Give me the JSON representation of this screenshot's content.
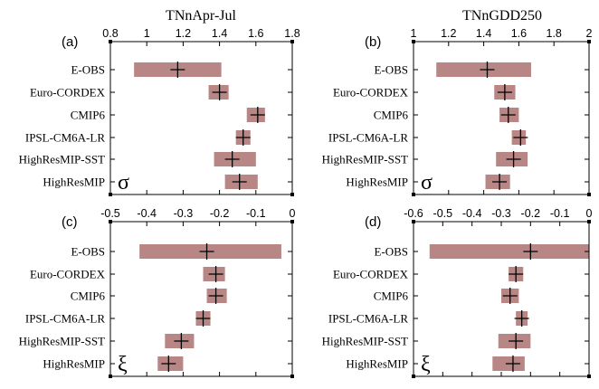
{
  "columns": [
    "TNnApr-Jul",
    "TNnGDD250"
  ],
  "chart_data": [
    {
      "type": "bar",
      "panel": "(a)",
      "param": "σ",
      "categories": [
        "E-OBS",
        "Euro-CORDEX",
        "CMIP6",
        "IPSL-CM6A-LR",
        "HighResMIP-SST",
        "HighResMIP"
      ],
      "xlim": [
        0.8,
        1.8
      ],
      "xticks": [
        "0.8",
        "1",
        "1.2",
        "1.4",
        "1.6",
        "1.8"
      ],
      "ranges": [
        [
          0.93,
          1.41
        ],
        [
          1.34,
          1.45
        ],
        [
          1.55,
          1.65
        ],
        [
          1.49,
          1.57
        ],
        [
          1.37,
          1.6
        ],
        [
          1.43,
          1.61
        ]
      ],
      "estimates": [
        1.17,
        1.4,
        1.61,
        1.53,
        1.47,
        1.51
      ]
    },
    {
      "type": "bar",
      "panel": "(b)",
      "param": "σ",
      "categories": [
        "E-OBS",
        "Euro-CORDEX",
        "CMIP6",
        "IPSL-CM6A-LR",
        "HighResMIP-SST",
        "HighResMIP"
      ],
      "xlim": [
        1,
        2
      ],
      "xticks": [
        "1",
        "1.2",
        "1.4",
        "1.6",
        "1.8",
        "2"
      ],
      "ranges": [
        [
          1.13,
          1.67
        ],
        [
          1.46,
          1.58
        ],
        [
          1.49,
          1.6
        ],
        [
          1.56,
          1.64
        ],
        [
          1.47,
          1.65
        ],
        [
          1.41,
          1.55
        ]
      ],
      "estimates": [
        1.42,
        1.52,
        1.54,
        1.61,
        1.57,
        1.49
      ]
    },
    {
      "type": "bar",
      "panel": "(c)",
      "param": "ξ",
      "categories": [
        "E-OBS",
        "Euro-CORDEX",
        "CMIP6",
        "IPSL-CM6A-LR",
        "HighResMIP-SST",
        "HighResMIP"
      ],
      "xlim": [
        -0.5,
        0
      ],
      "xticks": [
        "-0.5",
        "-0.4",
        "-0.3",
        "-0.2",
        "-0.1",
        "0"
      ],
      "ranges": [
        [
          -0.42,
          -0.03
        ],
        [
          -0.245,
          -0.185
        ],
        [
          -0.235,
          -0.18
        ],
        [
          -0.265,
          -0.225
        ],
        [
          -0.35,
          -0.27
        ],
        [
          -0.37,
          -0.3
        ]
      ],
      "estimates": [
        -0.235,
        -0.21,
        -0.21,
        -0.245,
        -0.305,
        -0.34
      ]
    },
    {
      "type": "bar",
      "panel": "(d)",
      "param": "ξ",
      "categories": [
        "E-OBS",
        "Euro-CORDEX",
        "CMIP6",
        "IPSL-CM6A-LR",
        "HighResMIP-SST",
        "HighResMIP"
      ],
      "xlim": [
        -0.6,
        0
      ],
      "xticks": [
        "-0.6",
        "-0.5",
        "-0.4",
        "-0.3",
        "-0.2",
        "-0.1",
        "0"
      ],
      "ranges": [
        [
          -0.545,
          0.0
        ],
        [
          -0.275,
          -0.225
        ],
        [
          -0.3,
          -0.24
        ],
        [
          -0.25,
          -0.21
        ],
        [
          -0.31,
          -0.2
        ],
        [
          -0.33,
          -0.22
        ]
      ],
      "estimates": [
        -0.2,
        -0.25,
        -0.27,
        -0.23,
        -0.25,
        -0.26
      ]
    }
  ]
}
